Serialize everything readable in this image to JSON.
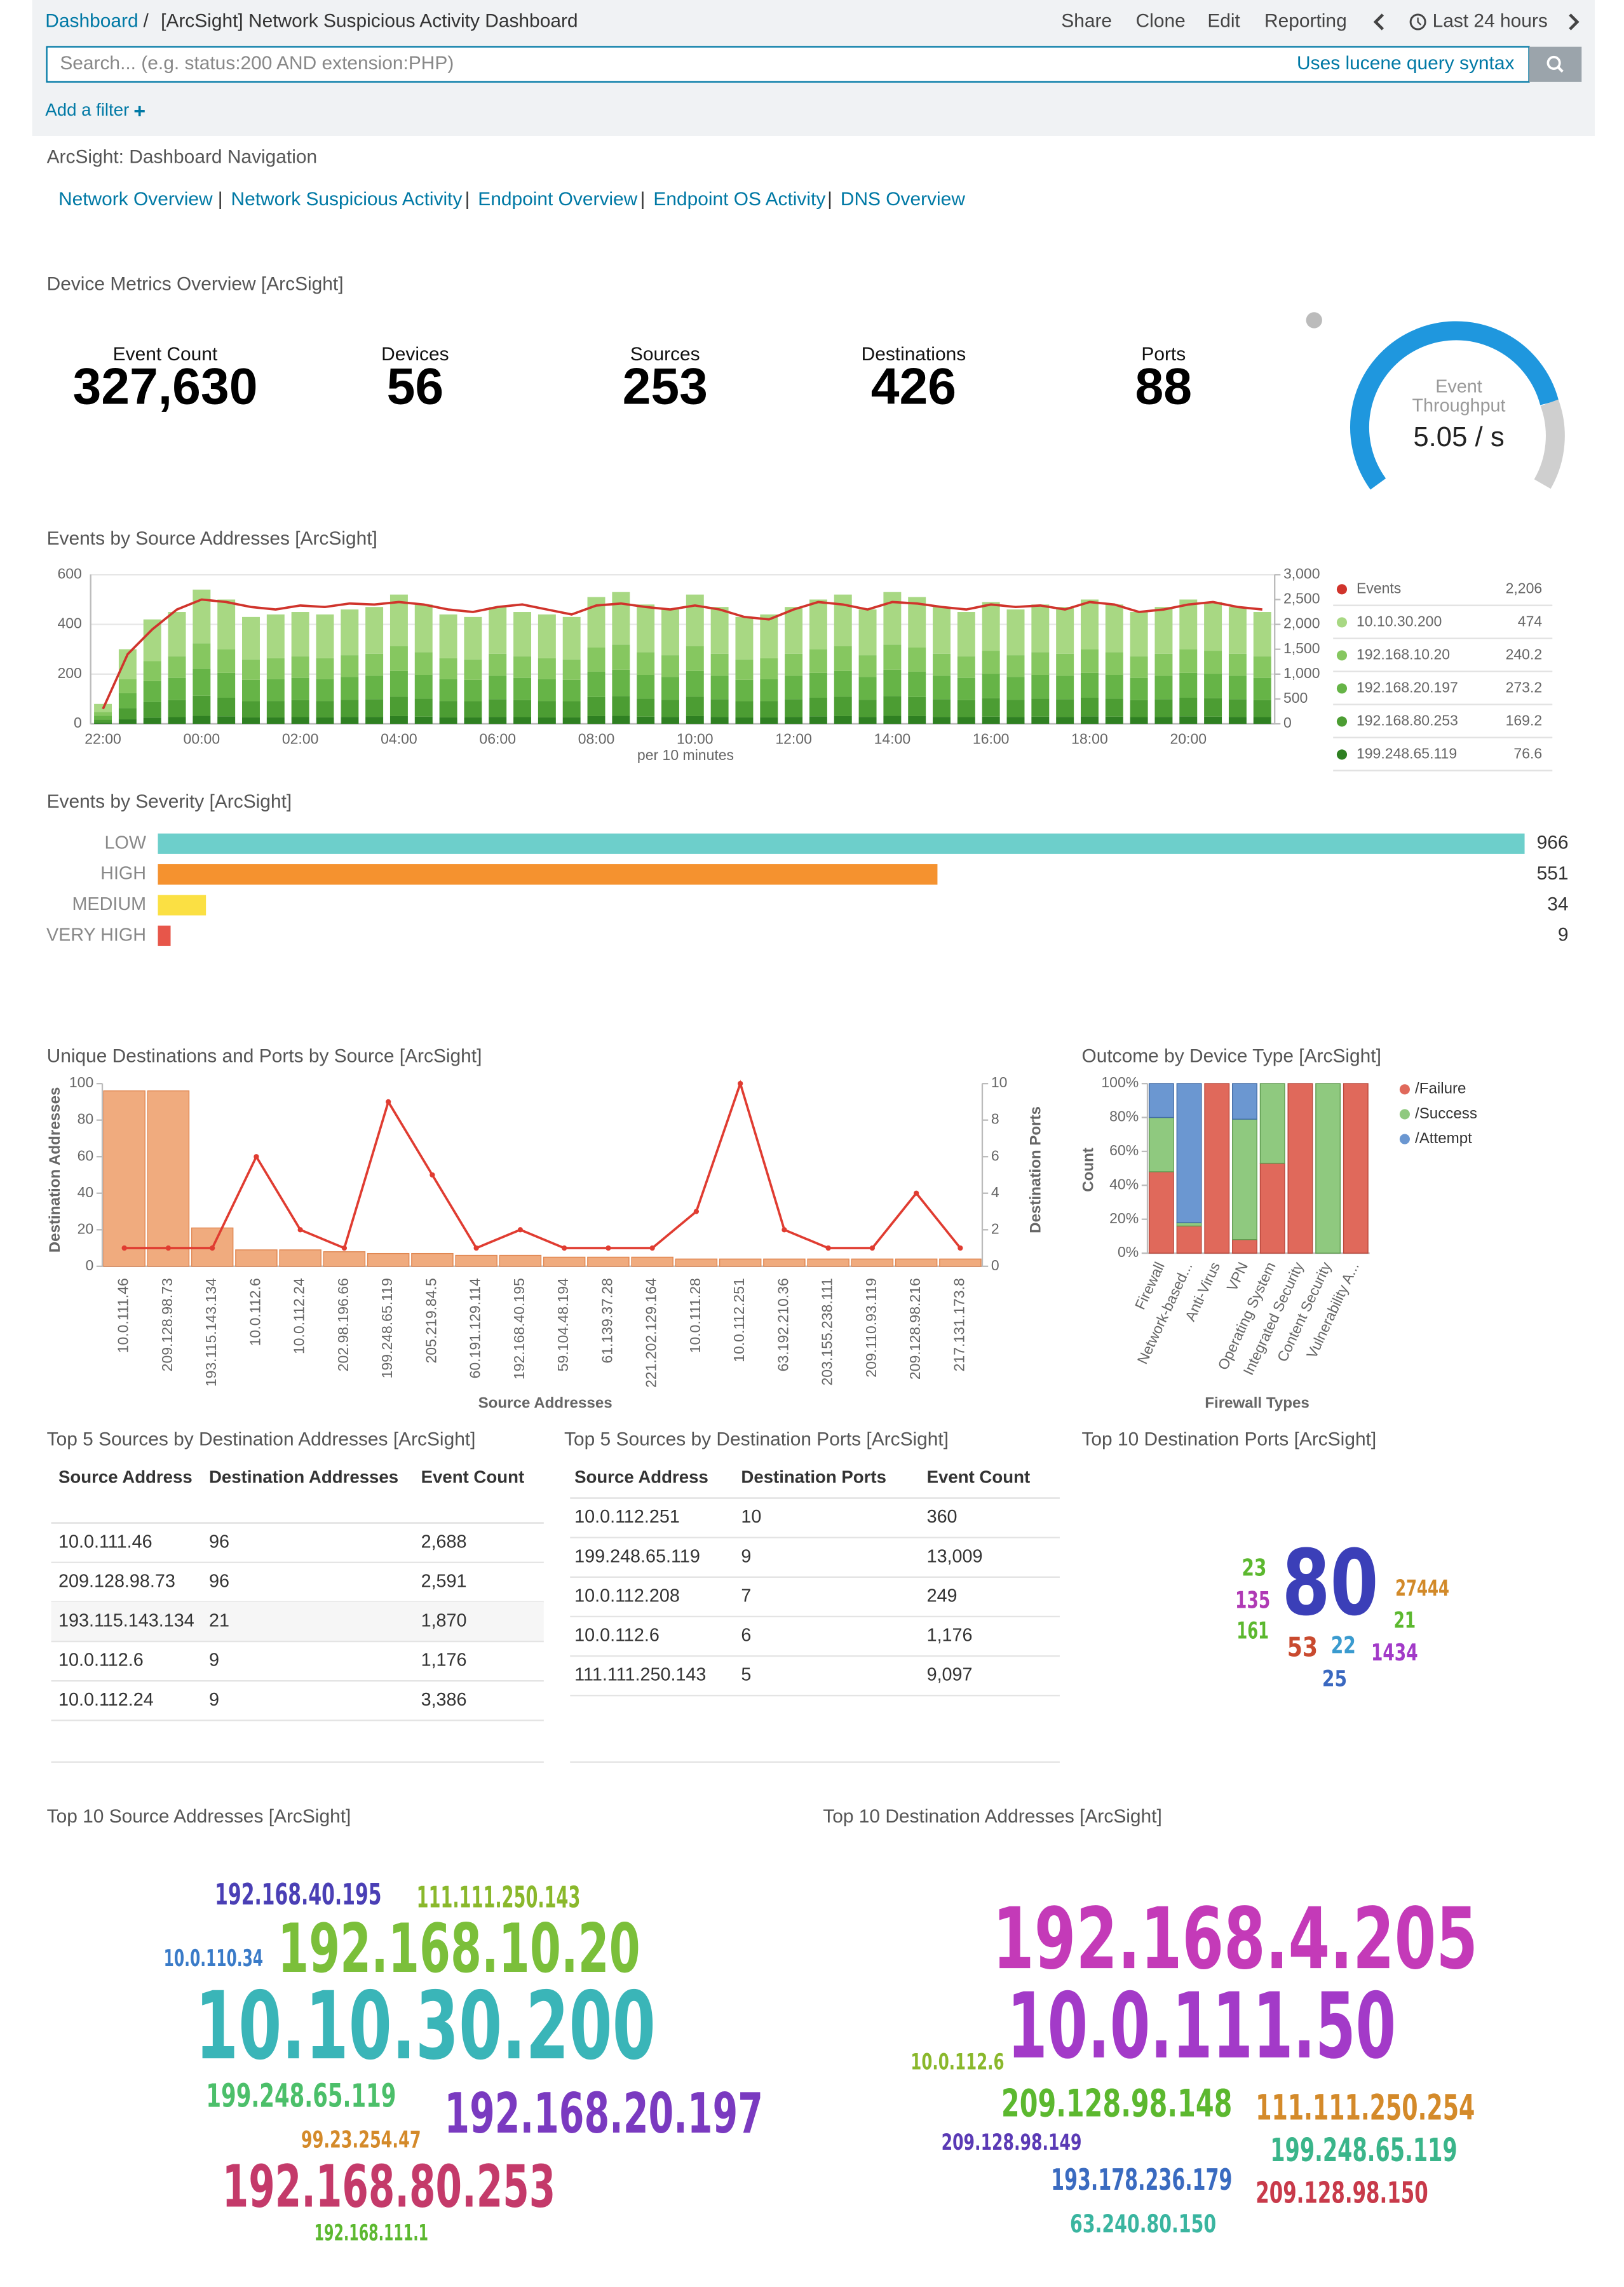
{
  "header": {
    "breadcrumb": "Dashboard",
    "separator": "/",
    "title": "[ArcSight] Network Suspicious Activity Dashboard",
    "actions": [
      "Share",
      "Clone",
      "Edit",
      "Reporting"
    ],
    "time_range": "Last 24 hours",
    "search_placeholder": "Search... (e.g. status:200 AND extension:PHP)",
    "search_hint": "Uses lucene query syntax",
    "add_filter": "Add a filter"
  },
  "navigation": {
    "title": "ArcSight: Dashboard Navigation",
    "separator": "|",
    "links": [
      "Network Overview",
      "Network Suspicious Activity",
      "Endpoint Overview",
      "Endpoint OS Activity",
      "DNS Overview"
    ]
  },
  "metrics": {
    "title": "Device Metrics Overview [ArcSight]",
    "items": [
      {
        "label": "Event Count",
        "value": "327,630"
      },
      {
        "label": "Devices",
        "value": "56"
      },
      {
        "label": "Sources",
        "value": "253"
      },
      {
        "label": "Destinations",
        "value": "426"
      },
      {
        "label": "Ports",
        "value": "88"
      }
    ],
    "gauge": {
      "label_lines": [
        "Event",
        "Throughput"
      ],
      "value": "5.05 / s"
    }
  },
  "chart_data": [
    {
      "type": "bar",
      "title": "Events by Source Addresses [ArcSight]",
      "stacked": true,
      "grid": true,
      "x_label": "per 10 minutes",
      "categories": [
        "22:00",
        null,
        null,
        null,
        "00:00",
        null,
        null,
        null,
        "02:00",
        null,
        null,
        null,
        "04:00",
        null,
        null,
        null,
        "06:00",
        null,
        null,
        null,
        "08:00",
        null,
        null,
        null,
        "10:00",
        null,
        null,
        null,
        "12:00",
        null,
        null,
        null,
        "14:00",
        null,
        null,
        null,
        "16:00",
        null,
        null,
        null,
        "18:00",
        null,
        null,
        null,
        "20:00",
        null,
        null,
        null
      ],
      "ylim": [
        0,
        600
      ],
      "yticks": [
        0,
        200,
        400,
        600
      ],
      "y2lim": [
        0,
        3000
      ],
      "y2ticks": [
        0,
        500,
        {
          "value": 1000,
          "label": "1,000"
        },
        {
          "value": 1500,
          "label": "1,500"
        },
        {
          "value": 2000,
          "label": "2,000"
        },
        {
          "value": 2500,
          "label": "2,500"
        },
        {
          "value": 3000,
          "label": "3,000"
        }
      ],
      "series": [
        {
          "name": "Events",
          "type": "line",
          "axis": "y2",
          "color": "#d0342c",
          "legend_value": "2,206",
          "values": [
            300,
            1400,
            1900,
            2300,
            2500,
            2450,
            2350,
            2300,
            2380,
            2350,
            2420,
            2400,
            2450,
            2400,
            2300,
            2250,
            2350,
            2400,
            2300,
            2200,
            2380,
            2420,
            2350,
            2300,
            2380,
            2300,
            2150,
            2100,
            2300,
            2450,
            2400,
            2300,
            2450,
            2420,
            2350,
            2300,
            2400,
            2350,
            2380,
            2300,
            2450,
            2400,
            2250,
            2300,
            2400,
            2450,
            2350,
            2300
          ]
        },
        {
          "name": "10.10.30.200",
          "color": "#a8d883",
          "legend_value": "474",
          "values": [
            32,
            120,
            168,
            179,
            216,
            200,
            171,
            176,
            179,
            176,
            184,
            188,
            208,
            192,
            176,
            171,
            188,
            179,
            176,
            171,
            203,
            211,
            192,
            184,
            208,
            188,
            171,
            176,
            188,
            200,
            208,
            184,
            211,
            203,
            188,
            179,
            196,
            184,
            192,
            188,
            200,
            192,
            179,
            188,
            200,
            196,
            188,
            179
          ]
        },
        {
          "name": "192.168.10.20",
          "color": "#86c760",
          "legend_value": "240.2",
          "values": [
            15,
            57,
            80,
            86,
            103,
            95,
            82,
            84,
            86,
            84,
            87,
            89,
            99,
            91,
            84,
            82,
            89,
            86,
            84,
            82,
            97,
            101,
            91,
            87,
            99,
            89,
            82,
            84,
            89,
            95,
            99,
            87,
            101,
            97,
            89,
            86,
            93,
            87,
            91,
            89,
            95,
            91,
            86,
            89,
            95,
            93,
            89,
            86
          ]
        },
        {
          "name": "192.168.20.197",
          "color": "#66b447",
          "legend_value": "273.2",
          "values": [
            16,
            60,
            84,
            90,
            108,
            100,
            86,
            88,
            90,
            88,
            92,
            94,
            104,
            96,
            88,
            86,
            94,
            90,
            88,
            86,
            102,
            106,
            96,
            92,
            104,
            94,
            86,
            88,
            94,
            100,
            104,
            92,
            106,
            102,
            94,
            90,
            98,
            92,
            96,
            94,
            100,
            96,
            90,
            94,
            100,
            98,
            94,
            90
          ]
        },
        {
          "name": "192.168.80.253",
          "color": "#4c9d33",
          "legend_value": "169.2",
          "values": [
            12,
            45,
            63,
            68,
            81,
            75,
            65,
            66,
            68,
            66,
            69,
            71,
            78,
            72,
            66,
            65,
            71,
            68,
            66,
            65,
            77,
            80,
            72,
            69,
            78,
            71,
            65,
            66,
            71,
            75,
            78,
            69,
            80,
            77,
            71,
            68,
            74,
            69,
            72,
            71,
            75,
            72,
            68,
            71,
            75,
            74,
            71,
            68
          ]
        },
        {
          "name": "199.248.65.119",
          "color": "#2f8022",
          "legend_value": "76.6",
          "values": [
            5,
            18,
            25,
            27,
            32,
            30,
            26,
            26,
            27,
            26,
            28,
            28,
            31,
            29,
            26,
            26,
            28,
            27,
            26,
            26,
            31,
            32,
            29,
            28,
            31,
            28,
            26,
            26,
            28,
            30,
            31,
            28,
            32,
            31,
            28,
            27,
            29,
            28,
            29,
            28,
            30,
            29,
            27,
            28,
            30,
            29,
            28,
            27
          ]
        }
      ]
    },
    {
      "type": "hbar",
      "title": "Events by Severity [ArcSight]",
      "categories": [
        "LOW",
        "HIGH",
        "MEDIUM",
        "VERY HIGH"
      ],
      "values": [
        966,
        551,
        34,
        9
      ],
      "colors": [
        "#6dcfcb",
        "#f5922f",
        "#fbe043",
        "#e7564a"
      ]
    },
    {
      "type": "bar",
      "title": "Unique Destinations and Ports by Source [ArcSight]",
      "x_label": "Source Addresses",
      "y_label": "Destination Addresses",
      "y2_label": "Destination Ports",
      "categories": [
        "10.0.111.46",
        "209.128.98.73",
        "193.115.143.134",
        "10.0.112.6",
        "10.0.112.24",
        "202.98.196.66",
        "199.248.65.119",
        "205.219.84.5",
        "60.191.129.114",
        "192.168.40.195",
        "59.104.48.194",
        "61.139.37.28",
        "221.202.129.164",
        "10.0.111.28",
        "10.0.112.251",
        "63.192.210.36",
        "203.155.238.111",
        "209.110.93.119",
        "209.128.98.216",
        "217.131.173.8"
      ],
      "ylim": [
        0,
        100
      ],
      "yticks": [
        0,
        20,
        40,
        60,
        80,
        100
      ],
      "y2lim": [
        0,
        10
      ],
      "y2ticks": [
        0,
        2,
        4,
        6,
        8,
        10
      ],
      "series": [
        {
          "name": "Destination Addresses",
          "color": "#f0ab7e",
          "stroke": "#e0854f",
          "values": [
            96,
            96,
            21,
            9,
            9,
            8,
            7,
            7,
            6,
            6,
            5,
            5,
            5,
            4,
            4,
            4,
            4,
            4,
            4,
            4
          ]
        },
        {
          "name": "Destination Ports",
          "type": "line",
          "axis": "y2",
          "color": "#e03c31",
          "values": [
            1,
            1,
            1,
            6,
            2,
            1,
            9,
            5,
            1,
            2,
            1,
            1,
            1,
            3,
            10,
            2,
            1,
            1,
            4,
            1
          ]
        }
      ]
    },
    {
      "type": "bar",
      "title": "Outcome by Device Type [ArcSight]",
      "stacked": true,
      "x_label": "Firewall Types",
      "y_label": "Count",
      "categories": [
        "Firewall",
        "Network-based...",
        "Anti-Virus",
        "VPN",
        "Operating System",
        "Integrated Security",
        "Content Security",
        "Vulnerability A..."
      ],
      "ylim": [
        0,
        100
      ],
      "yticks": [
        {
          "value": 0,
          "label": "0%"
        },
        {
          "value": 20,
          "label": "20%"
        },
        {
          "value": 40,
          "label": "40%"
        },
        {
          "value": 60,
          "label": "60%"
        },
        {
          "value": 80,
          "label": "80%"
        },
        {
          "value": 100,
          "label": "100%"
        }
      ],
      "series": [
        {
          "name": "/Failure",
          "color": "#e0695b",
          "stroke": "#b9473b",
          "values": [
            48,
            16,
            100,
            8,
            53,
            100,
            0,
            100
          ]
        },
        {
          "name": "/Success",
          "color": "#8fc97f",
          "stroke": "#5e9a4f",
          "values": [
            32,
            2,
            0,
            71,
            47,
            0,
            100,
            0
          ]
        },
        {
          "name": "/Attempt",
          "color": "#6b97d1",
          "stroke": "#3f6aa5",
          "values": [
            20,
            82,
            0,
            21,
            0,
            0,
            0,
            0
          ]
        }
      ]
    }
  ],
  "tables": [
    {
      "title": "Top 5 Sources by Destination Addresses [ArcSight]",
      "columns": [
        "Source Address",
        "Destination Addresses",
        "Event Count"
      ],
      "rows": [
        [
          "10.0.111.46",
          "96",
          "2,688"
        ],
        [
          "209.128.98.73",
          "96",
          "2,591"
        ],
        [
          "193.115.143.134",
          "21",
          "1,870"
        ],
        [
          "10.0.112.6",
          "9",
          "1,176"
        ],
        [
          "10.0.112.24",
          "9",
          "3,386"
        ]
      ]
    },
    {
      "title": "Top 5 Sources by Destination Ports [ArcSight]",
      "columns": [
        "Source Address",
        "Destination Ports",
        "Event Count"
      ],
      "rows": [
        [
          "10.0.112.251",
          "10",
          "360"
        ],
        [
          "199.248.65.119",
          "9",
          "13,009"
        ],
        [
          "10.0.112.208",
          "7",
          "249"
        ],
        [
          "10.0.112.6",
          "6",
          "1,176"
        ],
        [
          "111.111.250.143",
          "5",
          "9,097"
        ]
      ]
    }
  ],
  "tag_clouds": [
    {
      "title": "Top 10 Destination Ports [ArcSight]",
      "words": [
        {
          "text": "80",
          "color": "#3b3fb8"
        },
        {
          "text": "23",
          "color": "#5cb82f"
        },
        {
          "text": "135",
          "color": "#b03ab5"
        },
        {
          "text": "161",
          "color": "#5cb82f"
        },
        {
          "text": "53",
          "color": "#c94a2f"
        },
        {
          "text": "22",
          "color": "#3a9bcf"
        },
        {
          "text": "25",
          "color": "#3a68c0"
        },
        {
          "text": "27444",
          "color": "#d28a2a"
        },
        {
          "text": "21",
          "color": "#5cb82f"
        },
        {
          "text": "1434",
          "color": "#a23ac8"
        }
      ]
    },
    {
      "title": "Top 10 Source Addresses [ArcSight]",
      "words": [
        {
          "text": "192.168.40.195",
          "color": "#4a3fb5"
        },
        {
          "text": "111.111.250.143",
          "color": "#8ab82c"
        },
        {
          "text": "10.0.110.34",
          "color": "#3a7bc8"
        },
        {
          "text": "192.168.10.20",
          "color": "#7bbf3a"
        },
        {
          "text": "10.10.30.200",
          "color": "#3ab5b8"
        },
        {
          "text": "199.248.65.119",
          "color": "#4cbf6a"
        },
        {
          "text": "192.168.20.197",
          "color": "#7a3ac0"
        },
        {
          "text": "99.23.254.47",
          "color": "#d48a2a"
        },
        {
          "text": "192.168.80.253",
          "color": "#c43a6a"
        },
        {
          "text": "192.168.111.1",
          "color": "#5cb82f"
        }
      ]
    },
    {
      "title": "Top 10 Destination Addresses [ArcSight]",
      "words": [
        {
          "text": "192.168.4.205",
          "color": "#c43ab8"
        },
        {
          "text": "10.0.111.50",
          "color": "#a33ac8"
        },
        {
          "text": "10.0.112.6",
          "color": "#8ab82c"
        },
        {
          "text": "209.128.98.148",
          "color": "#5cb82f"
        },
        {
          "text": "111.111.250.254",
          "color": "#d48a2a"
        },
        {
          "text": "209.128.98.149",
          "color": "#5a3ab5"
        },
        {
          "text": "199.248.65.119",
          "color": "#3ab58a"
        },
        {
          "text": "193.178.236.179",
          "color": "#3a6bc0"
        },
        {
          "text": "209.128.98.150",
          "color": "#c83a4a"
        },
        {
          "text": "63.240.80.150",
          "color": "#3ab5a0"
        }
      ]
    }
  ]
}
